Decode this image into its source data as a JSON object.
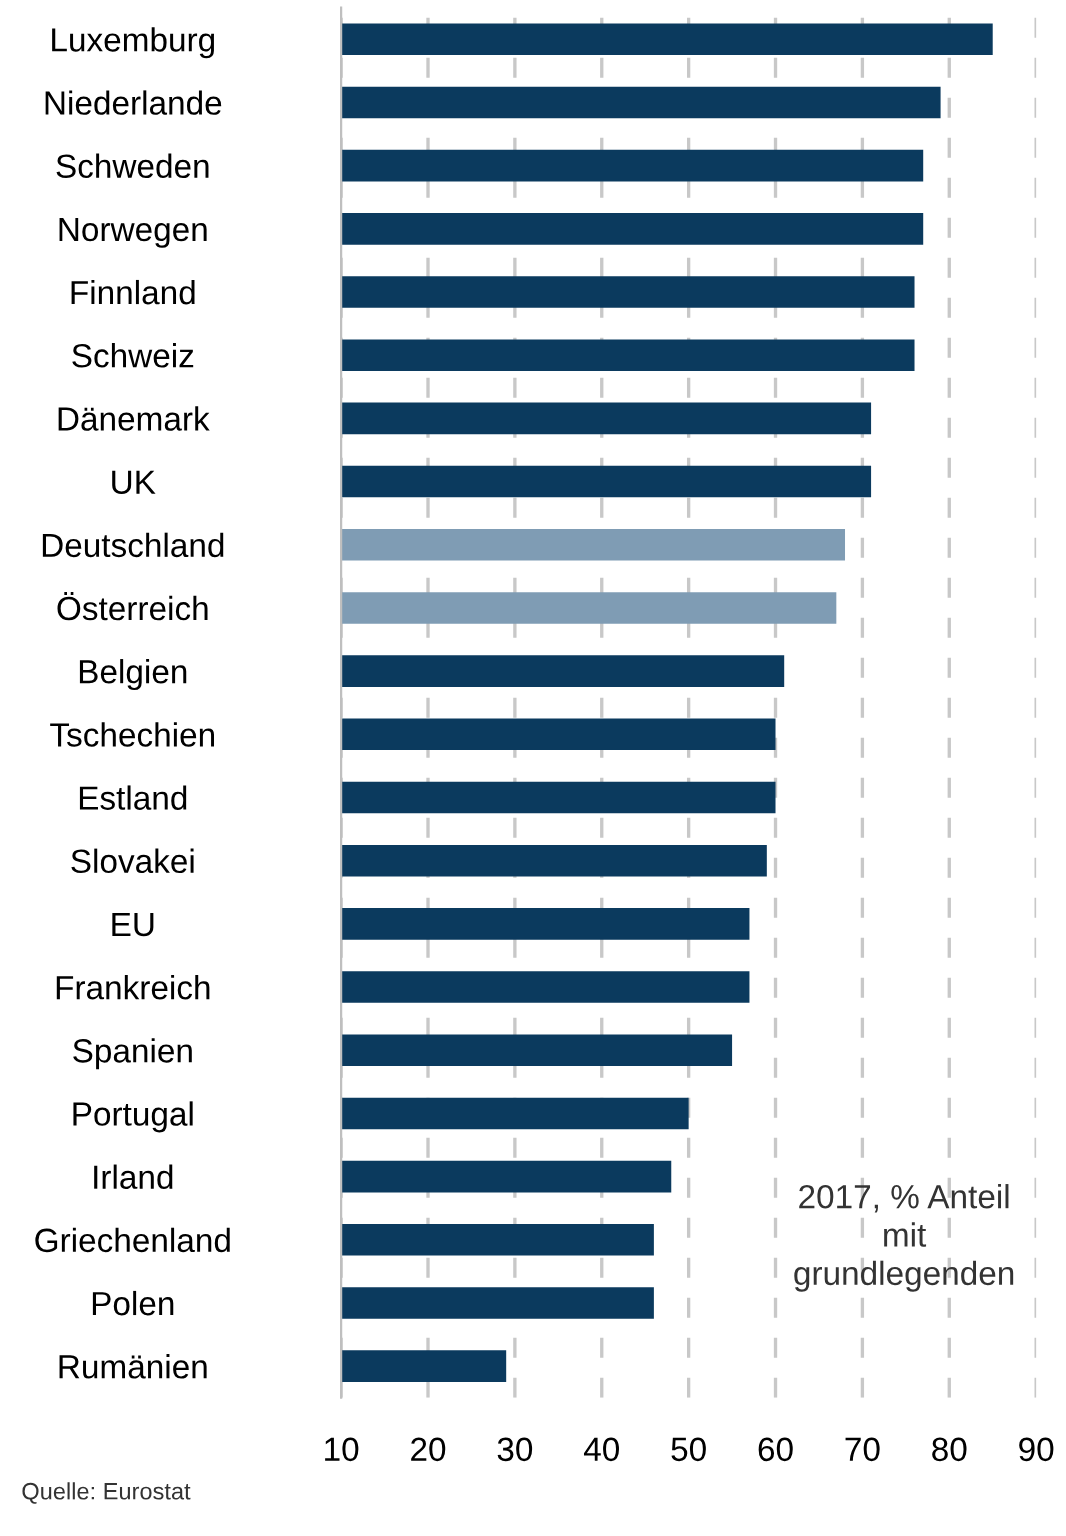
{
  "chart_data": {
    "type": "bar",
    "orientation": "horizontal",
    "categories": [
      "Luxemburg",
      "Niederlande",
      "Schweden",
      "Norwegen",
      "Finnland",
      "Schweiz",
      "Dänemark",
      "UK",
      "Deutschland",
      "Österreich",
      "Belgien",
      "Tschechien",
      "Estland",
      "Slovakei",
      "EU",
      "Frankreich",
      "Spanien",
      "Portugal",
      "Irland",
      "Griechenland",
      "Polen",
      "Rumänien"
    ],
    "values": [
      85,
      79,
      77,
      77,
      76,
      76,
      71,
      71,
      68,
      67,
      61,
      60,
      60,
      59,
      57,
      57,
      55,
      50,
      48,
      46,
      46,
      29
    ],
    "colors": [
      "#0b3a5e",
      "#0b3a5e",
      "#0b3a5e",
      "#0b3a5e",
      "#0b3a5e",
      "#0b3a5e",
      "#0b3a5e",
      "#0b3a5e",
      "#7f9cb4",
      "#7f9cb4",
      "#0b3a5e",
      "#0b3a5e",
      "#0b3a5e",
      "#0b3a5e",
      "#0b3a5e",
      "#0b3a5e",
      "#0b3a5e",
      "#0b3a5e",
      "#0b3a5e",
      "#0b3a5e",
      "#0b3a5e",
      "#0b3a5e"
    ],
    "xlim": [
      10,
      90
    ],
    "xticks": [
      10,
      20,
      30,
      40,
      50,
      60,
      70,
      80,
      90
    ],
    "grid": "x",
    "annotations": [
      "2017, % Anteil\nmit\ngrundlegenden",
      "Quelle: Eurostat"
    ]
  }
}
